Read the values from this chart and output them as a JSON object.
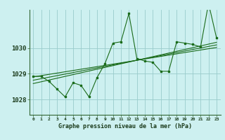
{
  "title": "Graphe pression niveau de la mer (hPa)",
  "bg_color": "#cdf0f0",
  "grid_color": "#99cccc",
  "line_color": "#1a6b1a",
  "x_labels": [
    "0",
    "1",
    "2",
    "3",
    "4",
    "5",
    "6",
    "7",
    "8",
    "9",
    "10",
    "11",
    "12",
    "13",
    "14",
    "15",
    "16",
    "17",
    "18",
    "19",
    "20",
    "21",
    "22",
    "23"
  ],
  "yticks": [
    1028,
    1029,
    1030
  ],
  "ylim": [
    1027.4,
    1031.5
  ],
  "xlim": [
    -0.5,
    23.5
  ],
  "series_main": [
    1028.9,
    1028.9,
    1028.7,
    1028.4,
    1028.1,
    1028.65,
    1028.55,
    1028.1,
    1028.85,
    1029.4,
    1030.2,
    1030.25,
    1031.35,
    1029.6,
    1029.5,
    1029.45,
    1029.1,
    1029.1,
    1030.25,
    1030.2,
    1030.15,
    1030.05,
    1031.75,
    1030.4
  ],
  "series_line1": [
    1028.88,
    1028.93,
    1028.98,
    1029.03,
    1029.08,
    1029.13,
    1029.18,
    1029.23,
    1029.28,
    1029.33,
    1029.38,
    1029.43,
    1029.48,
    1029.53,
    1029.58,
    1029.63,
    1029.68,
    1029.73,
    1029.78,
    1029.83,
    1029.88,
    1029.93,
    1029.98,
    1030.03
  ],
  "series_line2": [
    1028.75,
    1028.81,
    1028.87,
    1028.93,
    1028.99,
    1029.05,
    1029.11,
    1029.17,
    1029.23,
    1029.29,
    1029.35,
    1029.41,
    1029.47,
    1029.53,
    1029.59,
    1029.65,
    1029.71,
    1029.77,
    1029.83,
    1029.89,
    1029.95,
    1030.01,
    1030.07,
    1030.13
  ],
  "series_line3": [
    1028.62,
    1028.69,
    1028.76,
    1028.83,
    1028.9,
    1028.97,
    1029.04,
    1029.11,
    1029.18,
    1029.25,
    1029.32,
    1029.39,
    1029.46,
    1029.53,
    1029.6,
    1029.67,
    1029.74,
    1029.81,
    1029.88,
    1029.95,
    1030.02,
    1030.09,
    1030.16,
    1030.23
  ]
}
